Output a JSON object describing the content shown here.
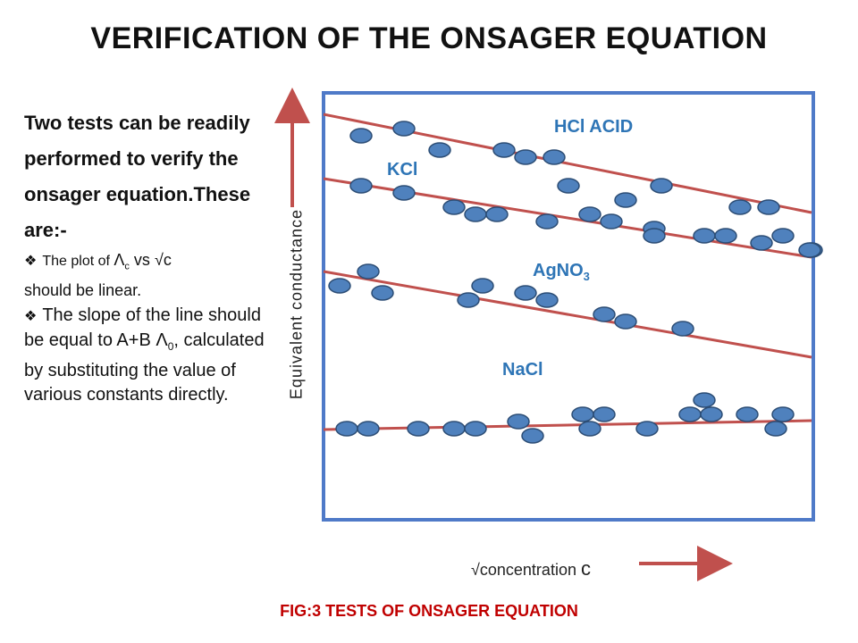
{
  "title": "VERIFICATION OF  THE ONSAGER EQUATION",
  "lead_text": "Two tests can be readily performed to verify the onsager equation.These are:-",
  "bullets": {
    "b1_pre": "The plot of ",
    "b1_lambda": "Λ",
    "b1_sub": "c",
    "b1_mid": " vs ",
    "b1_sqrt": "√",
    "b1_c": "c",
    "b1_post": "should be linear.",
    "b2_pre": "The slope of the line should be equal to A+B ",
    "b2_lambda": "Λ",
    "b2_sub": "0",
    "b2_post": ", calculated by substituting the value of various constants directly."
  },
  "colors": {
    "frame": "#4f7ac8",
    "line": "#c0504d",
    "dot_fill": "#4f81bd",
    "dot_stroke": "#2c4d75",
    "label": "#2e75b6",
    "caption": "#c00000",
    "arrow": "#c0504d"
  },
  "chart_data": {
    "type": "scatter",
    "title": "",
    "xlabel_sym": "√",
    "xlabel_text": "concentration ",
    "xlabel_var": "c",
    "ylabel": "Equivalent  conductance",
    "caption": "FIG:3 TESTS OF ONSAGER EQUATION",
    "series": [
      {
        "name": "HCl ACID",
        "label_main": "HCl ACID",
        "label_sub": "",
        "points": [
          [
            404,
            152
          ],
          [
            452,
            144
          ],
          [
            492,
            168
          ],
          [
            564,
            168
          ],
          [
            588,
            176
          ],
          [
            620,
            176
          ],
          [
            636,
            208
          ],
          [
            700,
            224
          ],
          [
            740,
            208
          ],
          [
            828,
            232
          ],
          [
            860,
            232
          ],
          [
            908,
            280
          ]
        ],
        "line": [
          [
            362,
            128
          ],
          [
            908,
            238
          ]
        ]
      },
      {
        "name": "KCl",
        "label_main": "KCl",
        "label_sub": "",
        "points": [
          [
            404,
            208
          ],
          [
            452,
            216
          ],
          [
            508,
            232
          ],
          [
            532,
            240
          ],
          [
            556,
            240
          ],
          [
            612,
            248
          ],
          [
            660,
            240
          ],
          [
            684,
            248
          ],
          [
            732,
            256
          ],
          [
            732,
            264
          ],
          [
            788,
            264
          ],
          [
            812,
            264
          ],
          [
            852,
            272
          ],
          [
            876,
            264
          ],
          [
            906,
            280
          ]
        ],
        "line": [
          [
            362,
            200
          ],
          [
            908,
            288
          ]
        ]
      },
      {
        "name": "AgNO3",
        "label_main": "AgNO",
        "label_sub": "3",
        "points": [
          [
            380,
            320
          ],
          [
            412,
            304
          ],
          [
            428,
            328
          ],
          [
            540,
            320
          ],
          [
            524,
            336
          ],
          [
            588,
            328
          ],
          [
            612,
            336
          ],
          [
            676,
            352
          ],
          [
            700,
            360
          ],
          [
            764,
            368
          ]
        ],
        "line": [
          [
            362,
            304
          ],
          [
            908,
            400
          ]
        ]
      },
      {
        "name": "NaCl",
        "label_main": "NaCl",
        "label_sub": "",
        "points": [
          [
            388,
            480
          ],
          [
            412,
            480
          ],
          [
            468,
            480
          ],
          [
            508,
            480
          ],
          [
            532,
            480
          ],
          [
            580,
            472
          ],
          [
            596,
            488
          ],
          [
            652,
            464
          ],
          [
            676,
            464
          ],
          [
            660,
            480
          ],
          [
            724,
            480
          ],
          [
            788,
            448
          ],
          [
            772,
            464
          ],
          [
            796,
            464
          ],
          [
            836,
            464
          ],
          [
            876,
            464
          ],
          [
            868,
            480
          ]
        ],
        "line": [
          [
            362,
            481
          ],
          [
            908,
            471
          ]
        ]
      }
    ]
  }
}
